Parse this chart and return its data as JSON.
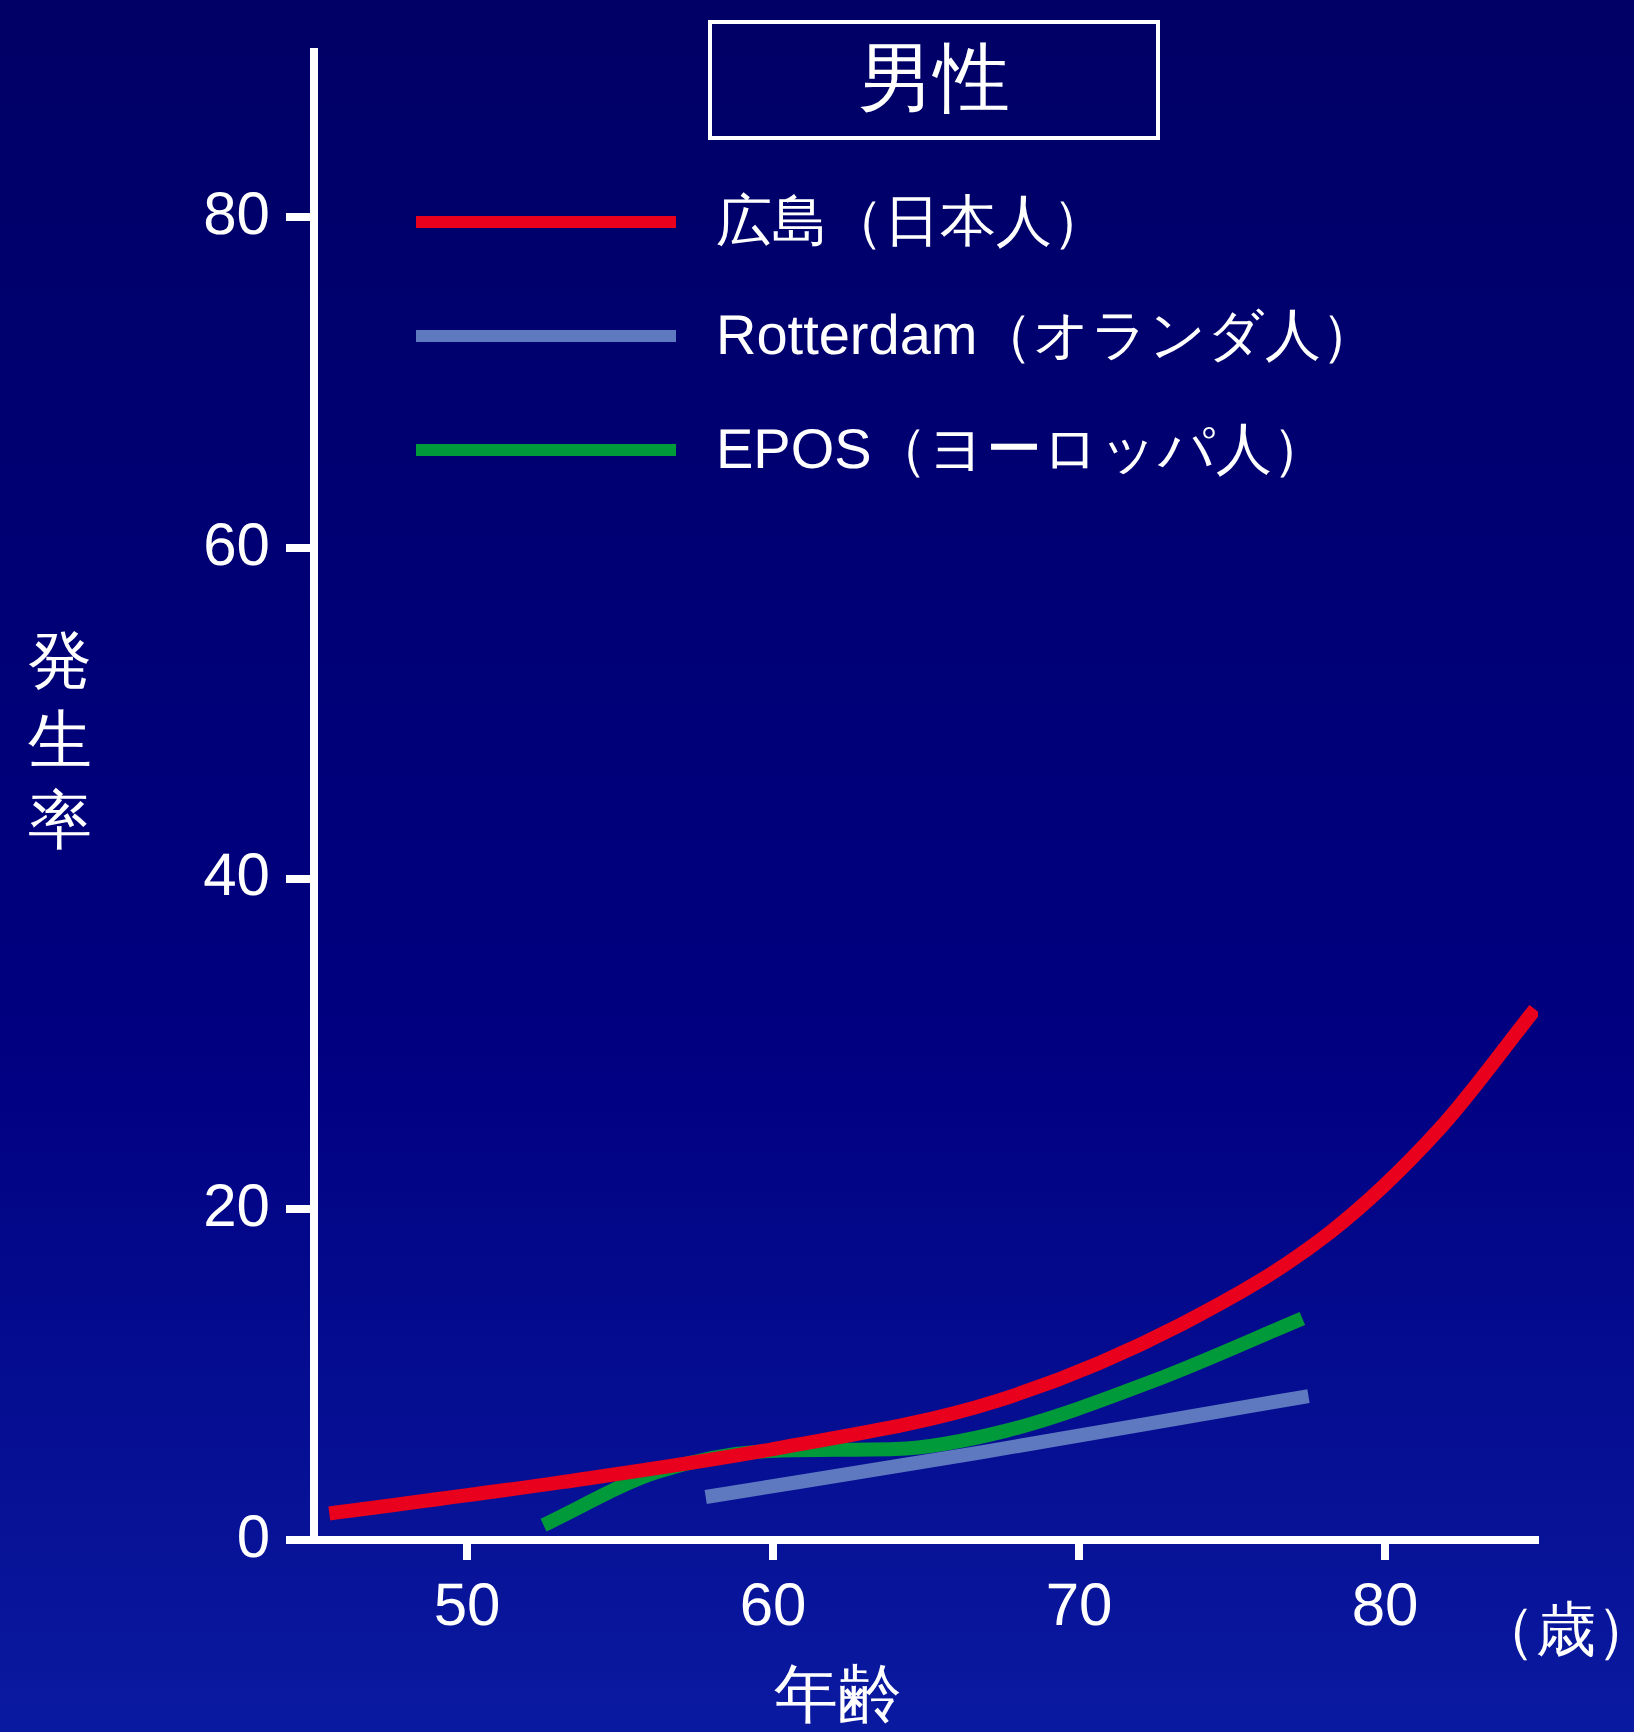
{
  "chart_data": {
    "type": "line",
    "title": "男性",
    "xlabel": "年齢",
    "ylabel": "発生率",
    "annotations": [
      "（歳）"
    ],
    "xlim": [
      45,
      85
    ],
    "xticks": [
      50,
      60,
      70,
      80
    ],
    "ylim": [
      0,
      90
    ],
    "yticks": [
      0,
      20,
      40,
      60,
      80
    ],
    "legend": "top left",
    "line_style": "solid",
    "marker": "none",
    "series": [
      {
        "name": "広島（日本人）",
        "color": "#e8001c",
        "x": [
          45.5,
          53.1,
          60,
          67.3,
          73.4,
          78.2,
          81.8,
          84.9
        ],
        "values": [
          1.6,
          3.5,
          5.5,
          8.4,
          13.1,
          18.6,
          24.9,
          32.1
        ]
      },
      {
        "name": "Rotterdam（オランダ人）",
        "color": "#5e79c0",
        "x": [
          57.8,
          66.8,
          76.2,
          77.5
        ],
        "values": [
          2.6,
          5.3,
          8.3,
          8.7
        ]
      },
      {
        "name": "EPOS（ヨーロッパ人）",
        "color": "#009a3a",
        "x": [
          52.5,
          56.2,
          60.1,
          64,
          67.6,
          72.4,
          77.3
        ],
        "values": [
          0.9,
          4.1,
          5.4,
          5.5,
          6.6,
          9.6,
          13.4
        ]
      }
    ]
  }
}
